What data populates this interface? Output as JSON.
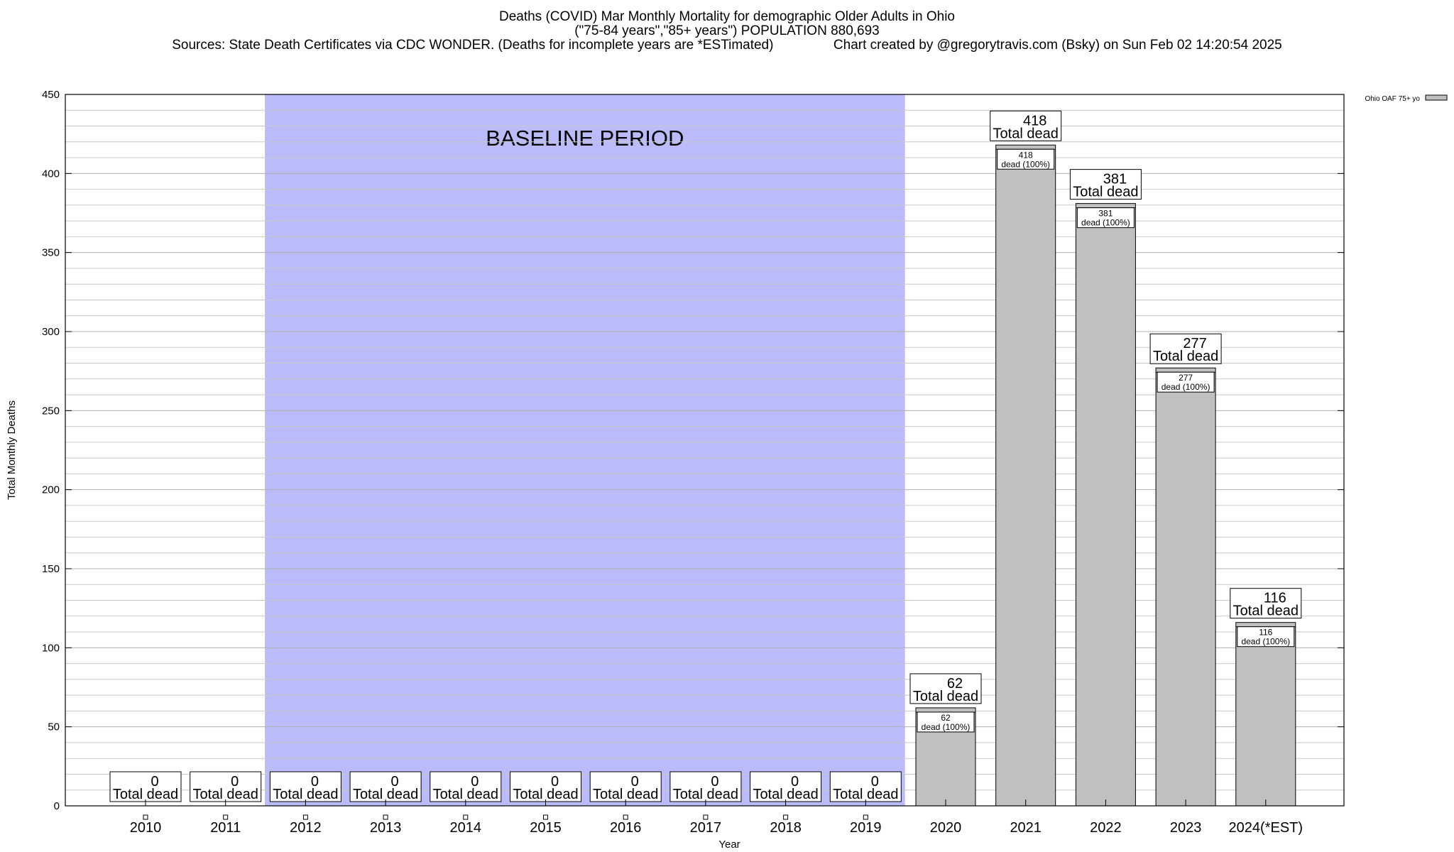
{
  "title_lines": [
    "Deaths (COVID) Mar Monthly Mortality for demographic Older Adults in Ohio",
    "(\"75-84 years\",\"85+ years\") POPULATION 880,693",
    "Sources: State Death Certificates via CDC WONDER. (Deaths for incomplete years are *ESTimated)                Chart created by @gregorytravis.com (Bsky) on Sun Feb 02 14:20:54 2025"
  ],
  "chart_data": {
    "type": "bar",
    "title": "Deaths (COVID) Mar Monthly Mortality for demographic Older Adults in Ohio",
    "xlabel": "Year",
    "ylabel": "Total Monthly Deaths",
    "ylim": [
      0,
      450
    ],
    "yticks": [
      0,
      50,
      100,
      150,
      200,
      250,
      300,
      350,
      400,
      450
    ],
    "grid": true,
    "legend_position": "top-right",
    "baseline_label": "BASELINE PERIOD",
    "baseline_range": [
      "2012",
      "2019"
    ],
    "categories": [
      "2010",
      "2011",
      "2012",
      "2013",
      "2014",
      "2015",
      "2016",
      "2017",
      "2018",
      "2019",
      "2020",
      "2021",
      "2022",
      "2023",
      "2024(*EST)"
    ],
    "series": [
      {
        "name": "Ohio OAF 75+ yo",
        "values": [
          0,
          0,
          0,
          0,
          0,
          0,
          0,
          0,
          0,
          0,
          62,
          418,
          381,
          277,
          116
        ]
      }
    ],
    "top_label_suffix": "Total dead",
    "inner_label_suffix": "dead (100%)",
    "colors": {
      "bar": "#c0c0c0",
      "baseline": "#bbbbf9",
      "grid": "#c8c8c8"
    }
  }
}
